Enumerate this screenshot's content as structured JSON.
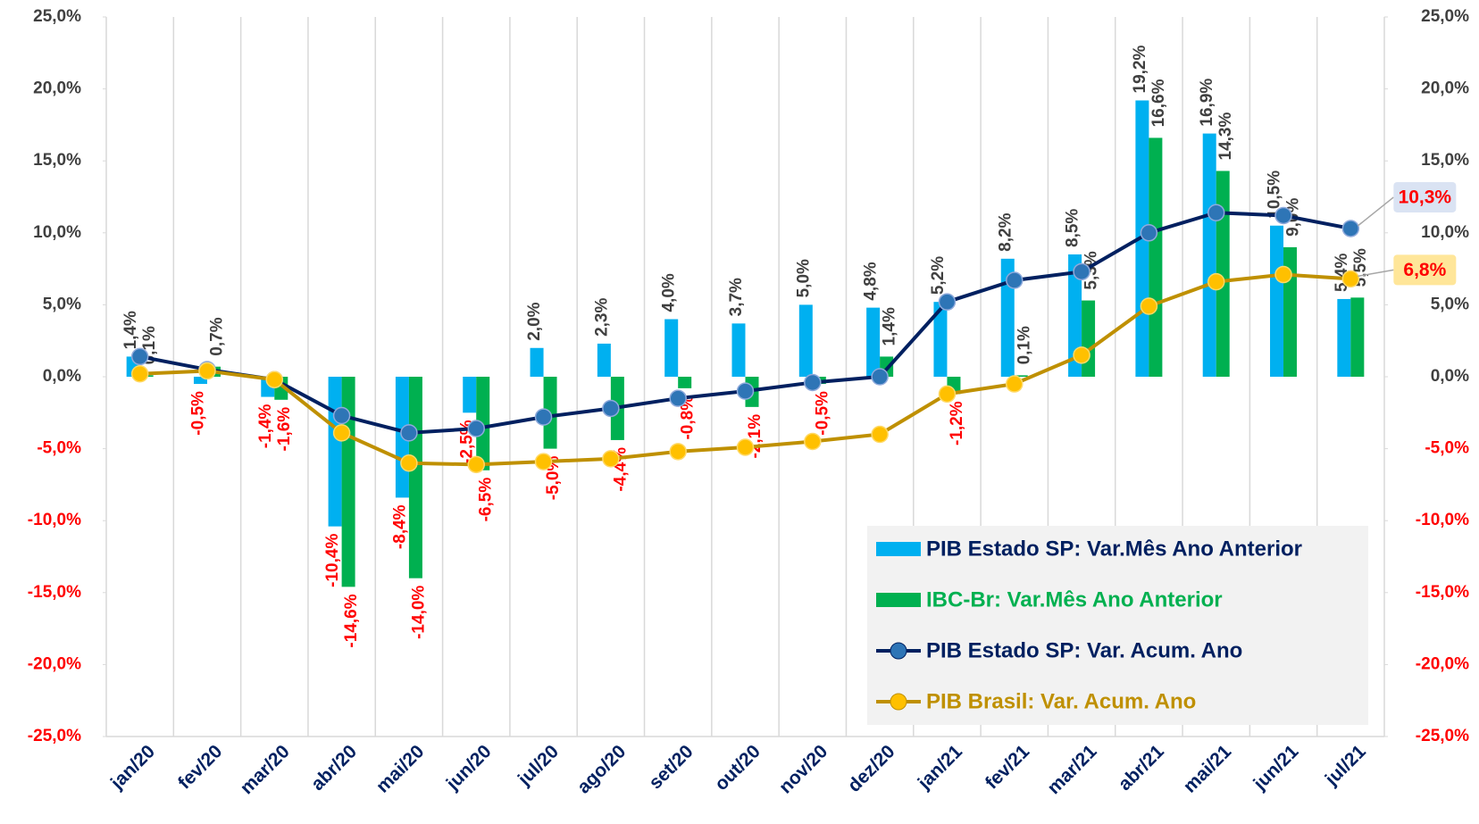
{
  "chart_data": {
    "type": "bar-line",
    "categories": [
      "jan/20",
      "fev/20",
      "mar/20",
      "abr/20",
      "mai/20",
      "jun/20",
      "jul/20",
      "ago/20",
      "set/20",
      "out/20",
      "nov/20",
      "dez/20",
      "jan/21",
      "fev/21",
      "mar/21",
      "abr/21",
      "mai/21",
      "jun/21",
      "jul/21"
    ],
    "series": [
      {
        "name": "PIB Estado SP: Var.Mês Ano Anterior",
        "type": "bar",
        "color": "#00b0f0",
        "values": [
          1.4,
          -0.5,
          -1.4,
          -10.4,
          -8.4,
          -2.5,
          2.0,
          2.3,
          4.0,
          3.7,
          5.0,
          4.8,
          5.2,
          8.2,
          8.5,
          19.2,
          16.9,
          10.5,
          5.4
        ],
        "value_labels": [
          "1,4%",
          "-0,5%",
          "-1,4%",
          "-10,4%",
          "-8,4%",
          "-2,5%",
          "2,0%",
          "2,3%",
          "4,0%",
          "3,7%",
          "5,0%",
          "4,8%",
          "5,2%",
          "8,2%",
          "8,5%",
          "19,2%",
          "16,9%",
          "10,5%",
          "5,4%"
        ]
      },
      {
        "name": "IBC-Br: Var.Mês Ano Anterior",
        "type": "bar",
        "color": "#00b050",
        "values": [
          0.1,
          0.7,
          -1.6,
          -14.6,
          -14.0,
          -6.5,
          -5.0,
          -4.4,
          -0.8,
          -2.1,
          -0.5,
          1.4,
          -1.2,
          0.1,
          5.3,
          16.6,
          14.3,
          9.0,
          5.5
        ],
        "value_labels": [
          "0,1%",
          "0,7%",
          "-1,6%",
          "-14,6%",
          "-14,0%",
          "-6,5%",
          "-5,0%",
          "-4,4%",
          "-0,8%",
          "-2,1%",
          "-0,5%",
          "1,4%",
          "-1,2%",
          "0,1%",
          "5,3%",
          "16,6%",
          "14,3%",
          "9,0%",
          "5,5%"
        ]
      },
      {
        "name": "PIB Estado SP: Var. Acum. Ano",
        "type": "line",
        "axis": "y2",
        "color": "#002060",
        "marker_color": "#2e75b6",
        "label_background": "#dae3f3",
        "values": [
          1.4,
          0.5,
          -0.2,
          -2.7,
          -3.9,
          -3.6,
          -2.8,
          -2.2,
          -1.5,
          -1.0,
          -0.4,
          0.0,
          5.2,
          6.7,
          7.3,
          10.0,
          11.4,
          11.2,
          10.3
        ],
        "value_labels": [
          null,
          null,
          null,
          null,
          null,
          null,
          null,
          null,
          null,
          null,
          null,
          null,
          null,
          null,
          null,
          null,
          null,
          null,
          "10,3%"
        ]
      },
      {
        "name": "PIB Brasil: Var. Acum. Ano",
        "type": "line",
        "axis": "y2",
        "color": "#bf9000",
        "marker_color": "#ffc000",
        "label_background": "#ffe699",
        "values": [
          0.2,
          0.4,
          -0.2,
          -3.9,
          -6.0,
          -6.1,
          -5.9,
          -5.7,
          -5.2,
          -4.9,
          -4.5,
          -4.0,
          -1.2,
          -0.5,
          1.5,
          4.9,
          6.6,
          7.1,
          6.8
        ],
        "value_labels": [
          null,
          null,
          null,
          null,
          null,
          null,
          null,
          null,
          null,
          null,
          null,
          null,
          null,
          null,
          null,
          null,
          null,
          null,
          "6,8%"
        ]
      }
    ],
    "ylim": [
      -25,
      25
    ],
    "yticks": [
      {
        "value": -25,
        "label": "-25,0%"
      },
      {
        "value": -20,
        "label": "-20,0%"
      },
      {
        "value": -15,
        "label": "-15,0%"
      },
      {
        "value": -10,
        "label": "-10,0%"
      },
      {
        "value": -5,
        "label": "-5,0%"
      },
      {
        "value": 0,
        "label": "0,0%"
      },
      {
        "value": 5,
        "label": "5,0%"
      },
      {
        "value": 10,
        "label": "10,0%"
      },
      {
        "value": 15,
        "label": "15,0%"
      },
      {
        "value": 20,
        "label": "20,0%"
      },
      {
        "value": 25,
        "label": "25,0%"
      }
    ],
    "y2lim": [
      -25,
      25
    ],
    "y2ticks": [
      {
        "value": -25,
        "label": "-25,0%"
      },
      {
        "value": -20,
        "label": "-20,0%"
      },
      {
        "value": -15,
        "label": "-15,0%"
      },
      {
        "value": -10,
        "label": "-10,0%"
      },
      {
        "value": -5,
        "label": "-5,0%"
      },
      {
        "value": 0,
        "label": "0,0%"
      },
      {
        "value": 5,
        "label": "5,0%"
      },
      {
        "value": 10,
        "label": "10,0%"
      },
      {
        "value": 15,
        "label": "15,0%"
      },
      {
        "value": 20,
        "label": "20,0%"
      },
      {
        "value": 25,
        "label": "25,0%"
      }
    ],
    "grid": false,
    "legend": "lower right",
    "positive_label_color": "#404040",
    "negative_label_color": "#ff0000",
    "category_color": "#002060"
  }
}
